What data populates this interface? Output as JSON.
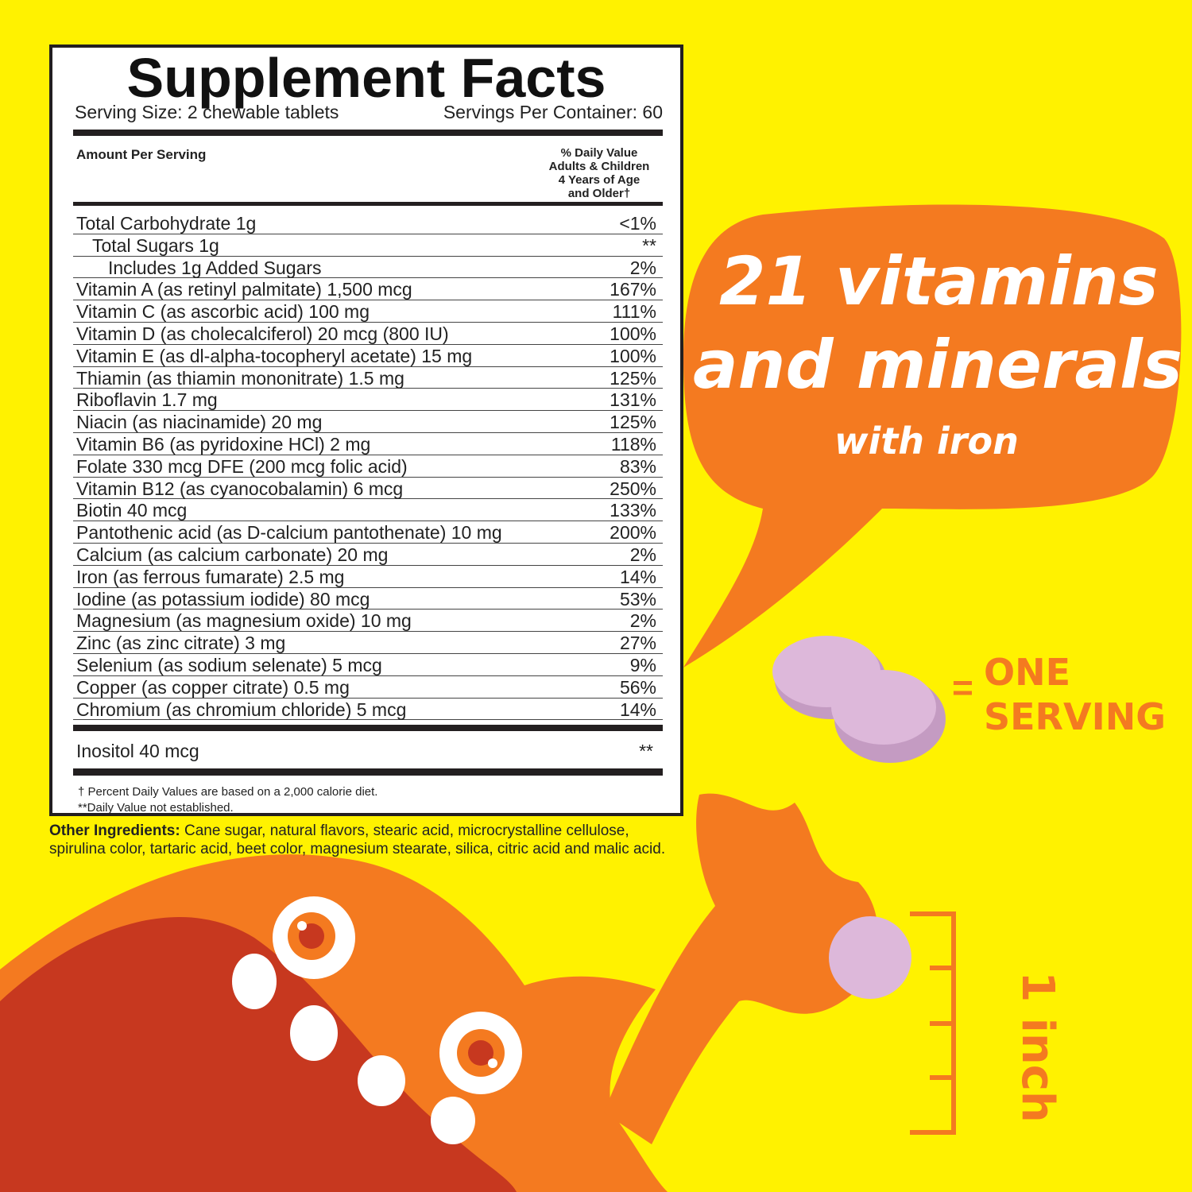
{
  "label": {
    "title": "Supplement Facts",
    "serving_size": "Serving Size: 2 chewable tablets",
    "servings_per_container": "Servings Per Container: 60",
    "amount_per_serving": "Amount Per Serving",
    "dv_header": [
      "% Daily Value",
      "Adults & Children",
      "4 Years of Age",
      "and Older†"
    ],
    "rows": [
      {
        "name": "Total Carbohydrate 1g",
        "dv": "<1%",
        "indent": 0
      },
      {
        "name": "Total Sugars 1g",
        "dv": "**",
        "indent": 1
      },
      {
        "name": "Includes 1g Added Sugars",
        "dv": "2%",
        "indent": 2
      },
      {
        "name": "Vitamin A (as retinyl palmitate) 1,500 mcg",
        "dv": "167%",
        "indent": 0
      },
      {
        "name": "Vitamin C (as ascorbic acid) 100 mg",
        "dv": "111%",
        "indent": 0
      },
      {
        "name": "Vitamin D (as cholecalciferol) 20 mcg (800 IU)",
        "dv": "100%",
        "indent": 0
      },
      {
        "name": "Vitamin E (as dl-alpha-tocopheryl acetate) 15 mg",
        "dv": "100%",
        "indent": 0
      },
      {
        "name": "Thiamin (as thiamin mononitrate) 1.5 mg",
        "dv": "125%",
        "indent": 0
      },
      {
        "name": "Riboflavin 1.7 mg",
        "dv": "131%",
        "indent": 0
      },
      {
        "name": "Niacin (as niacinamide) 20 mg",
        "dv": "125%",
        "indent": 0
      },
      {
        "name": "Vitamin B6 (as pyridoxine HCl) 2 mg",
        "dv": "118%",
        "indent": 0
      },
      {
        "name": "Folate 330 mcg DFE (200 mcg folic acid)",
        "dv": "83%",
        "indent": 0
      },
      {
        "name": "Vitamin B12 (as cyanocobalamin) 6 mcg",
        "dv": "250%",
        "indent": 0
      },
      {
        "name": "Biotin 40 mcg",
        "dv": "133%",
        "indent": 0
      },
      {
        "name": "Pantothenic acid (as D-calcium pantothenate) 10 mg",
        "dv": "200%",
        "indent": 0
      },
      {
        "name": "Calcium (as calcium carbonate) 20 mg",
        "dv": "2%",
        "indent": 0
      },
      {
        "name": "Iron (as ferrous fumarate) 2.5 mg",
        "dv": "14%",
        "indent": 0
      },
      {
        "name": "Iodine (as potassium iodide) 80 mcg",
        "dv": "53%",
        "indent": 0
      },
      {
        "name": "Magnesium (as magnesium oxide) 10 mg",
        "dv": "2%",
        "indent": 0
      },
      {
        "name": "Zinc (as zinc citrate) 3 mg",
        "dv": "27%",
        "indent": 0
      },
      {
        "name": "Selenium (as sodium selenate) 5 mcg",
        "dv": "9%",
        "indent": 0
      },
      {
        "name": "Copper (as copper citrate) 0.5 mg",
        "dv": "56%",
        "indent": 0
      },
      {
        "name": "Chromium (as chromium chloride) 5 mcg",
        "dv": "14%",
        "indent": 0
      }
    ],
    "inositol": {
      "name": "Inositol 40 mcg",
      "dv": "**"
    },
    "footnote_1": "† Percent Daily Values are based on a 2,000 calorie diet.",
    "footnote_2": "**Daily Value not established."
  },
  "other_ingredients": {
    "label": "Other Ingredients:",
    "text": " Cane sugar, natural flavors, stearic acid, microcrystalline cellulose, spirulina color, tartaric acid, beet color, magnesium stearate, silica, citric acid and malic acid."
  },
  "bubble": {
    "line1": "21 vitamins",
    "line2": "and minerals",
    "line3": "with iron"
  },
  "serving_callout": {
    "equals": "=",
    "line1": "ONE",
    "line2": "SERVING"
  },
  "ruler_label": "1 inch",
  "colors": {
    "background": "#fff200",
    "orange": "#f47a20",
    "dark_orange": "#c7381f",
    "tablet": "#d9b3d6",
    "ink": "#231f20"
  }
}
